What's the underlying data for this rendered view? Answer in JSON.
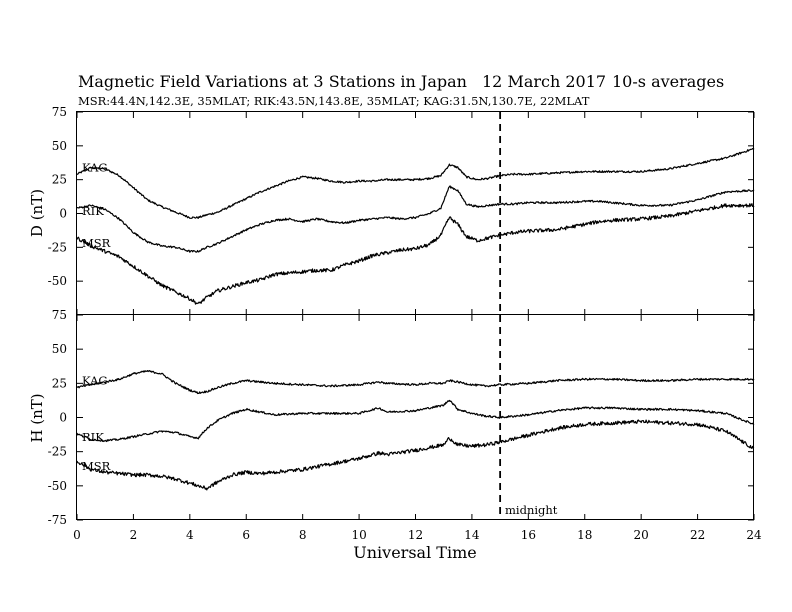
{
  "title": "Magnetic Field Variations at 3 Stations in Japan",
  "date": "12 March 2017",
  "averaging": "10-s averages",
  "subtitle": "MSR:44.4N,142.3E, 35MLAT;  RIK:43.5N,143.8E, 35MLAT;  KAG:31.5N,130.7E, 22MLAT",
  "annotation": "midnight",
  "chart_data": [
    {
      "type": "line",
      "panel": "top",
      "ylabel": "D (nT)",
      "xlabel": "Universal Time",
      "xlim": [
        0,
        24
      ],
      "ylim": [
        -75,
        75
      ],
      "xticks": [
        0,
        2,
        4,
        6,
        8,
        10,
        12,
        14,
        16,
        18,
        20,
        22,
        24
      ],
      "yticks": [
        -75,
        -50,
        -25,
        0,
        25,
        50,
        75
      ],
      "grid": false,
      "vertical_line": {
        "x": 15,
        "style": "dashed"
      },
      "series": [
        {
          "name": "KAG",
          "x": [
            0,
            0.5,
            1,
            1.5,
            2,
            2.5,
            3,
            3.5,
            4,
            4.3,
            4.6,
            5,
            5.5,
            6,
            6.5,
            7,
            7.5,
            8,
            8.5,
            9,
            9.5,
            10,
            10.5,
            11,
            11.5,
            12,
            12.5,
            12.9,
            13.2,
            13.5,
            13.8,
            14.2,
            14.6,
            15,
            15.5,
            16,
            17,
            18,
            18.5,
            19,
            20,
            21,
            22,
            23,
            24
          ],
          "values": [
            29,
            34,
            33,
            28,
            19,
            10,
            5,
            1,
            -3,
            -3,
            -1,
            1,
            6,
            11,
            16,
            20,
            24,
            27,
            26,
            24,
            23,
            24,
            24,
            25,
            25,
            25,
            26,
            28,
            36,
            34,
            27,
            25,
            26,
            28,
            29,
            29,
            30,
            31,
            31,
            31,
            31,
            33,
            37,
            41,
            48
          ]
        },
        {
          "name": "RIK",
          "x": [
            0,
            0.5,
            1,
            1.5,
            2,
            2.5,
            3,
            3.5,
            4,
            4.3,
            4.6,
            5,
            5.5,
            6,
            6.5,
            7,
            7.5,
            8,
            8.5,
            9,
            9.5,
            10,
            10.5,
            11,
            11.5,
            12,
            12.5,
            12.9,
            13.2,
            13.5,
            13.8,
            14.2,
            14.6,
            15,
            15.5,
            16,
            17,
            18,
            18.5,
            19,
            20,
            21,
            22,
            23,
            24
          ],
          "values": [
            4,
            6,
            3,
            -4,
            -14,
            -21,
            -24,
            -25,
            -28,
            -28,
            -25,
            -22,
            -17,
            -12,
            -8,
            -5,
            -4,
            -6,
            -4,
            -6,
            -7,
            -5,
            -4,
            -3,
            -4,
            -3,
            0,
            4,
            20,
            17,
            7,
            5,
            6,
            7,
            7,
            8,
            8,
            9,
            9,
            8,
            6,
            6,
            10,
            16,
            17
          ]
        },
        {
          "name": "MSR",
          "x": [
            0,
            0.5,
            1,
            1.5,
            2,
            2.5,
            3,
            3.5,
            4,
            4.3,
            4.6,
            5,
            5.5,
            6,
            6.5,
            7,
            7.5,
            8,
            8.5,
            9,
            9.5,
            10,
            10.5,
            11,
            11.5,
            12,
            12.5,
            12.9,
            13.2,
            13.5,
            13.8,
            14.2,
            14.6,
            15,
            15.5,
            16,
            17,
            18,
            18.5,
            19,
            20,
            21,
            22,
            23,
            24
          ],
          "values": [
            -18,
            -24,
            -28,
            -32,
            -39,
            -46,
            -53,
            -58,
            -63,
            -67,
            -62,
            -57,
            -54,
            -51,
            -49,
            -45,
            -44,
            -43,
            -42,
            -42,
            -38,
            -35,
            -31,
            -29,
            -27,
            -26,
            -23,
            -16,
            -3,
            -8,
            -17,
            -20,
            -18,
            -16,
            -14,
            -13,
            -12,
            -8,
            -6,
            -5,
            -4,
            -2,
            2,
            6,
            6
          ]
        }
      ]
    },
    {
      "type": "line",
      "panel": "bottom",
      "ylabel": "H (nT)",
      "xlabel": "Universal Time",
      "xlim": [
        0,
        24
      ],
      "ylim": [
        -75,
        75
      ],
      "xticks": [
        0,
        2,
        4,
        6,
        8,
        10,
        12,
        14,
        16,
        18,
        20,
        22,
        24
      ],
      "yticks": [
        -75,
        -50,
        -25,
        0,
        25,
        50,
        75
      ],
      "grid": false,
      "vertical_line": {
        "x": 15,
        "style": "dashed"
      },
      "series": [
        {
          "name": "KAG",
          "x": [
            0,
            0.5,
            1,
            1.5,
            2,
            2.5,
            3,
            3.5,
            4,
            4.3,
            4.6,
            5,
            5.5,
            6,
            6.5,
            7,
            8,
            9,
            10,
            10.7,
            11,
            12,
            12.5,
            13,
            13.2,
            13.5,
            14,
            14.5,
            15,
            16,
            17,
            18,
            19,
            20,
            21,
            22,
            23,
            24
          ],
          "values": [
            22,
            24,
            26,
            28,
            32,
            34,
            32,
            25,
            20,
            18,
            19,
            22,
            25,
            27,
            26,
            25,
            24,
            23,
            24,
            26,
            25,
            24,
            25,
            25,
            27,
            26,
            24,
            23,
            24,
            25,
            27,
            28,
            28,
            27,
            27,
            28,
            28,
            28
          ]
        },
        {
          "name": "RIK",
          "x": [
            0,
            0.5,
            1,
            1.5,
            2,
            2.5,
            3,
            3.5,
            4,
            4.3,
            4.6,
            5,
            5.5,
            6,
            6.5,
            7,
            8,
            9,
            10,
            10.7,
            11,
            12,
            12.5,
            13,
            13.2,
            13.5,
            14,
            14.5,
            15,
            16,
            17,
            18,
            19,
            20,
            21,
            22,
            23,
            24
          ],
          "values": [
            -12,
            -16,
            -17,
            -16,
            -14,
            -12,
            -10,
            -11,
            -14,
            -15,
            -8,
            -2,
            3,
            6,
            4,
            2,
            3,
            3,
            3,
            7,
            4,
            5,
            7,
            9,
            13,
            6,
            3,
            1,
            0,
            2,
            5,
            7,
            7,
            6,
            6,
            5,
            3,
            -5
          ]
        },
        {
          "name": "MSR",
          "x": [
            0,
            0.5,
            1,
            1.5,
            2,
            2.5,
            3,
            3.5,
            4,
            4.3,
            4.6,
            5,
            5.5,
            6,
            6.5,
            7,
            8,
            9,
            10,
            10.7,
            11,
            12,
            12.5,
            13,
            13.2,
            13.5,
            14,
            14.5,
            15,
            16,
            17,
            18,
            19,
            20,
            21,
            22,
            23,
            24
          ],
          "values": [
            -32,
            -38,
            -40,
            -41,
            -42,
            -42,
            -43,
            -45,
            -48,
            -50,
            -52,
            -47,
            -42,
            -40,
            -41,
            -40,
            -38,
            -34,
            -30,
            -26,
            -27,
            -24,
            -22,
            -20,
            -15,
            -20,
            -21,
            -20,
            -18,
            -13,
            -8,
            -5,
            -4,
            -3,
            -4,
            -5,
            -10,
            -23
          ]
        }
      ]
    }
  ]
}
